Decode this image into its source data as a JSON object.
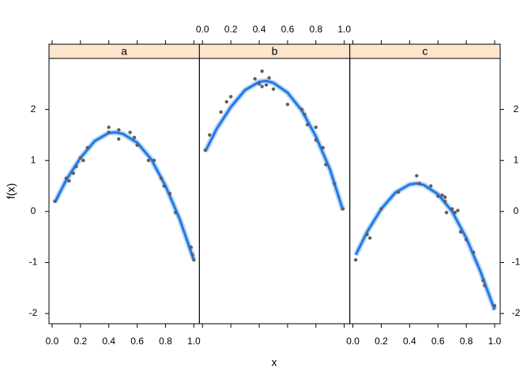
{
  "chart_data": {
    "type": "scatter",
    "xlabel": "x",
    "ylabel": "f(x)",
    "xlim": [
      -0.022,
      1.039
    ],
    "ylim": [
      -2.2,
      3.0
    ],
    "xticks": [
      {
        "value": 0,
        "label": "0.0"
      },
      0.2,
      0.4,
      0.6,
      0.8,
      {
        "value": 1,
        "label": "1.0"
      }
    ],
    "yticks": [
      -2,
      -1,
      0,
      1,
      2
    ],
    "point_color": "#5f5f5f",
    "fit_color": "#1f78e6",
    "strip_color": "#ffe5cc",
    "panels": [
      {
        "title": "a",
        "x": [
          0.02,
          0.1,
          0.12,
          0.15,
          0.17,
          0.2,
          0.22,
          0.25,
          0.4,
          0.4,
          0.47,
          0.47,
          0.55,
          0.58,
          0.6,
          0.68,
          0.72,
          0.77,
          0.79,
          0.83,
          0.87,
          0.98,
          0.99,
          1.0
        ],
        "y": [
          0.2,
          0.65,
          0.6,
          0.75,
          0.88,
          1.05,
          1.0,
          1.25,
          1.55,
          1.65,
          1.42,
          1.6,
          1.55,
          1.45,
          1.3,
          1.0,
          1.0,
          0.65,
          0.5,
          0.35,
          -0.02,
          -0.7,
          -0.85,
          -0.95
        ],
        "fit_x": [
          0.02,
          0.1,
          0.2,
          0.3,
          0.4,
          0.45,
          0.5,
          0.6,
          0.7,
          0.8,
          0.9,
          1.0
        ],
        "fit_y": [
          0.18,
          0.62,
          1.05,
          1.38,
          1.54,
          1.55,
          1.52,
          1.35,
          1.02,
          0.5,
          -0.15,
          -0.95
        ]
      },
      {
        "title": "b",
        "x": [
          0.02,
          0.05,
          0.13,
          0.17,
          0.2,
          0.37,
          0.4,
          0.42,
          0.42,
          0.45,
          0.47,
          0.5,
          0.6,
          0.7,
          0.72,
          0.74,
          0.8,
          0.8,
          0.85,
          0.87,
          0.93,
          0.99
        ],
        "y": [
          1.2,
          1.5,
          1.95,
          2.15,
          2.25,
          2.6,
          2.5,
          2.75,
          2.45,
          2.48,
          2.62,
          2.4,
          2.1,
          2.0,
          1.9,
          1.7,
          1.65,
          1.4,
          1.25,
          0.92,
          0.55,
          0.05
        ],
        "fit_x": [
          0.02,
          0.1,
          0.2,
          0.3,
          0.4,
          0.45,
          0.5,
          0.6,
          0.7,
          0.8,
          0.9,
          0.99
        ],
        "fit_y": [
          1.18,
          1.62,
          2.05,
          2.38,
          2.54,
          2.56,
          2.52,
          2.33,
          1.98,
          1.47,
          0.82,
          0.03
        ]
      },
      {
        "title": "c",
        "x": [
          0.02,
          0.1,
          0.12,
          0.2,
          0.32,
          0.45,
          0.47,
          0.55,
          0.6,
          0.63,
          0.65,
          0.65,
          0.66,
          0.7,
          0.72,
          0.74,
          0.76,
          0.8,
          0.85,
          0.92,
          0.93,
          1.0
        ],
        "y": [
          -0.95,
          -0.45,
          -0.52,
          0.05,
          0.38,
          0.7,
          0.55,
          0.5,
          0.3,
          0.32,
          0.28,
          0.2,
          -0.02,
          0.05,
          -0.02,
          0.02,
          -0.4,
          -0.55,
          -0.8,
          -1.35,
          -1.45,
          -1.85
        ],
        "fit_x": [
          0.02,
          0.1,
          0.2,
          0.3,
          0.4,
          0.45,
          0.5,
          0.6,
          0.7,
          0.8,
          0.9,
          1.0
        ],
        "fit_y": [
          -0.85,
          -0.4,
          0.05,
          0.37,
          0.53,
          0.55,
          0.52,
          0.34,
          0.0,
          -0.52,
          -1.18,
          -1.93
        ]
      }
    ]
  }
}
